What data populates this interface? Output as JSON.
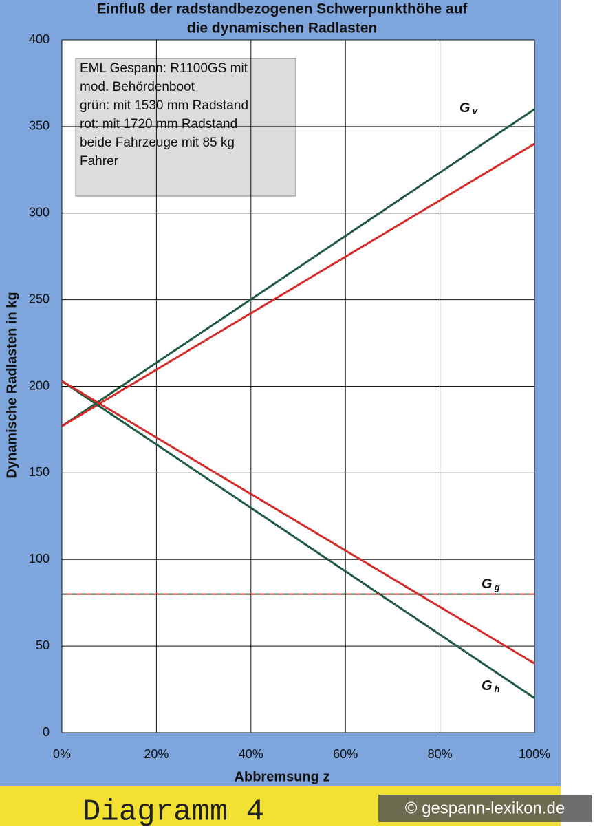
{
  "chart_data": {
    "type": "line",
    "title": [
      "Einfluß der radstandbezogenen Schwerpunkthöhe auf",
      "die dynamischen Radlasten"
    ],
    "x_label": "Abbremsung z",
    "y_label": "Dynamische Radlasten in kg",
    "x": [
      0,
      100
    ],
    "series": [
      {
        "color": "#1f5a40",
        "values": [
          177,
          360
        ],
        "dash": false
      },
      {
        "color": "#d42b2b",
        "values": [
          177,
          340
        ],
        "dash": false
      },
      {
        "color": "#1f5a40",
        "values": [
          203,
          20
        ],
        "dash": false
      },
      {
        "color": "#d42b2b",
        "values": [
          203,
          40
        ],
        "dash": false
      },
      {
        "color": "#1f5a40",
        "values": [
          80,
          80
        ],
        "dash": true
      },
      {
        "color": "#d42b2b",
        "values": [
          80,
          80
        ],
        "dash": true
      }
    ],
    "xlim": [
      0,
      100
    ],
    "xticks": [
      {
        "value": 0,
        "label": "0%"
      },
      {
        "value": 20,
        "label": "20%"
      },
      {
        "value": 40,
        "label": "40%"
      },
      {
        "value": 60,
        "label": "60%"
      },
      {
        "value": 80,
        "label": "80%"
      },
      {
        "value": 100,
        "label": "100%"
      }
    ],
    "ylim": [
      0,
      400
    ],
    "yticks": [
      0,
      50,
      100,
      150,
      200,
      250,
      300,
      350,
      400
    ],
    "grid": true,
    "curve_labels": [
      {
        "main": "G",
        "sub": "v"
      },
      {
        "main": "G",
        "sub": "g"
      },
      {
        "main": "G",
        "sub": "h"
      }
    ],
    "info_box": [
      "EML Gespann:  R1100GS mit",
      "mod. Behördenboot",
      "grün: mit 1530 mm Radstand",
      "rot:    mit 1720 mm Radstand",
      "beide Fahrzeuge mit 85 kg",
      "Fahrer"
    ]
  },
  "footer": {
    "caption": "Diagramm 4",
    "watermark": "© gespann-lexikon.de"
  }
}
